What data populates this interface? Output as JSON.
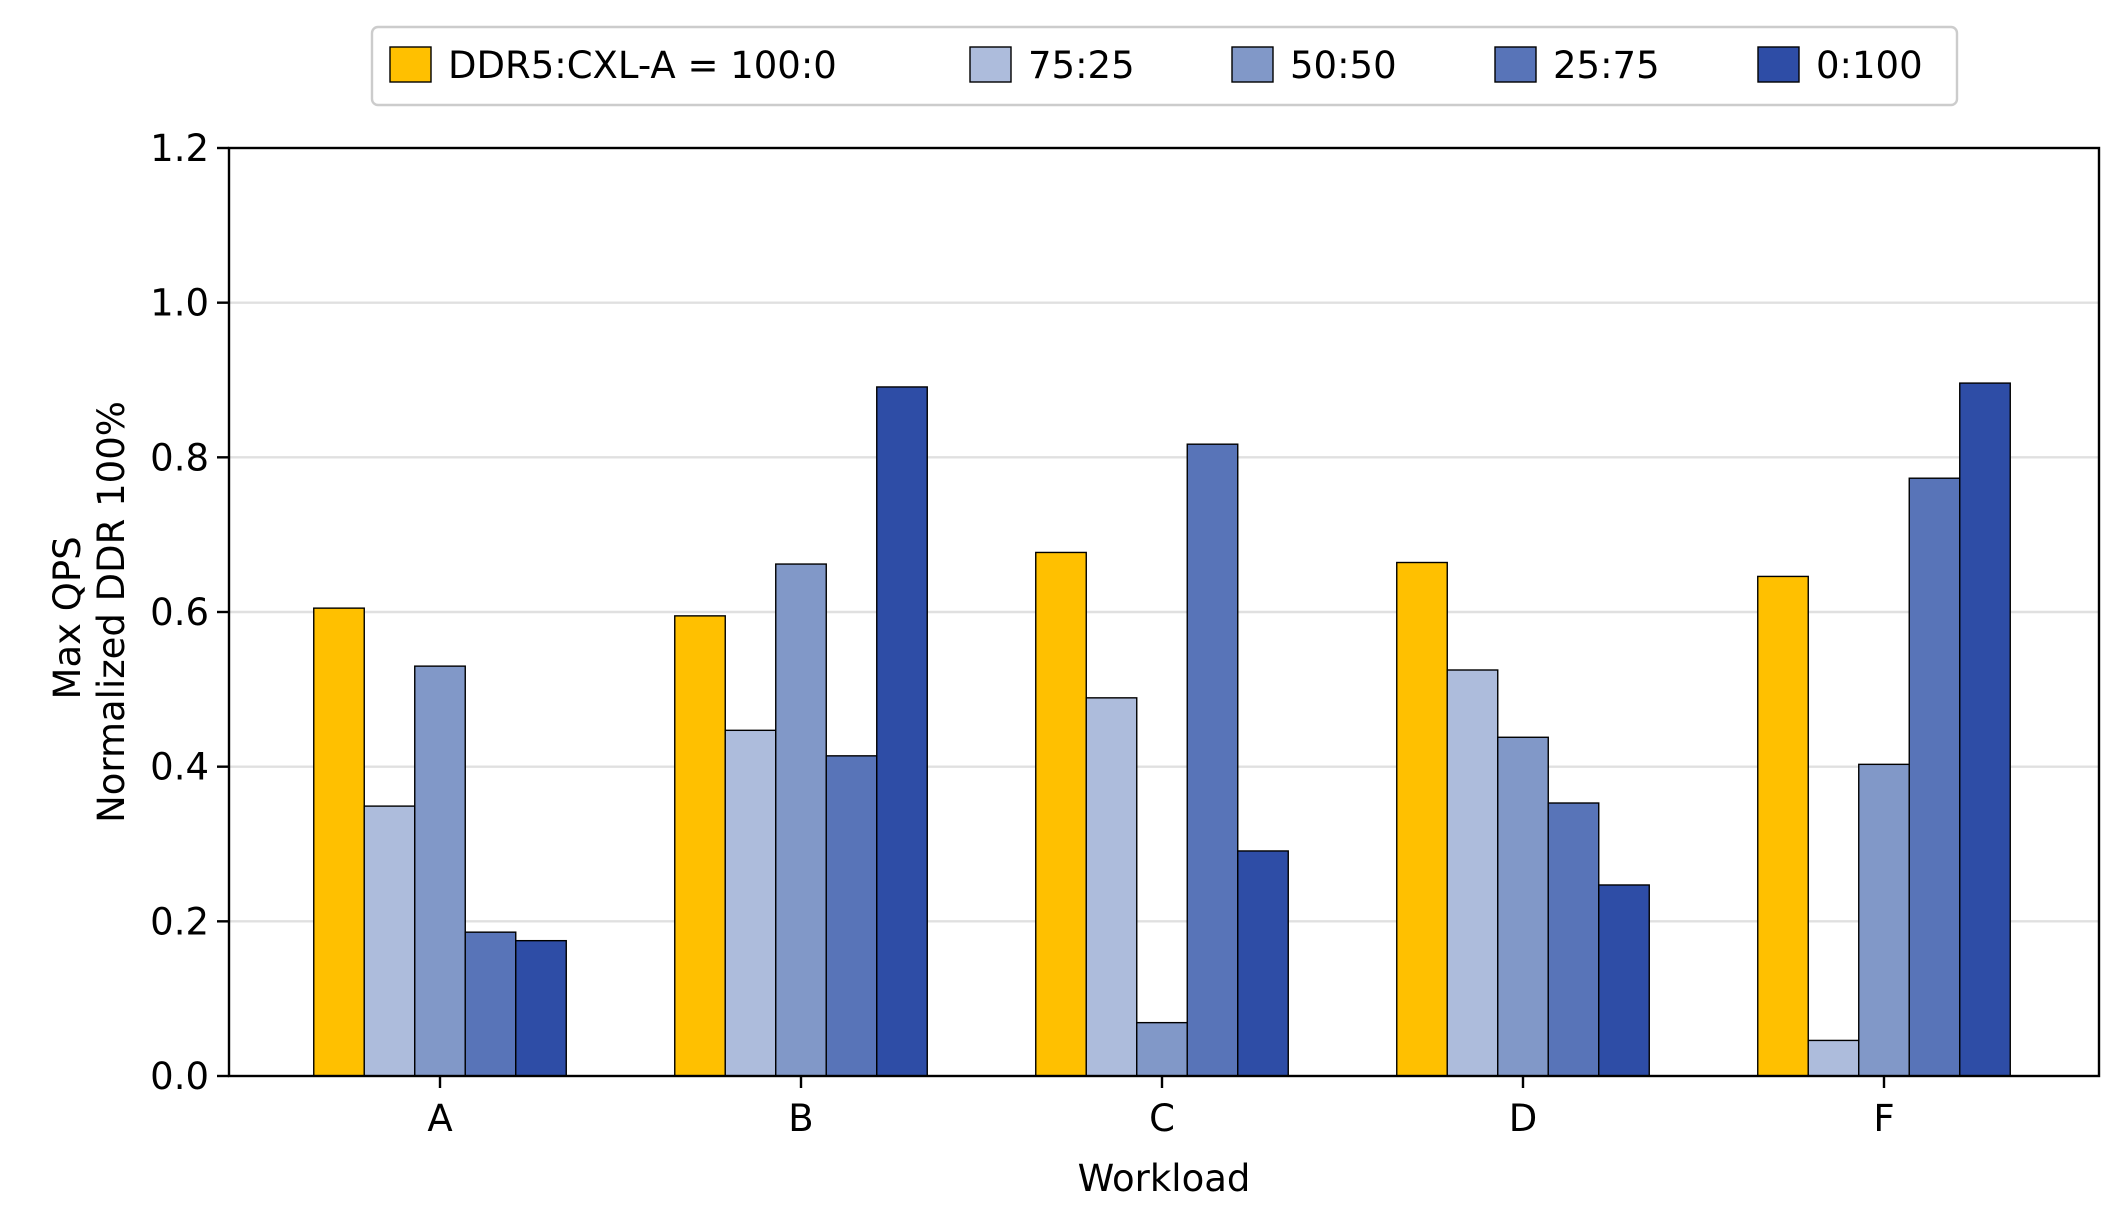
{
  "chart_data": {
    "type": "bar",
    "title": "",
    "xlabel": "Workload",
    "ylabel_lines": [
      "Max QPS",
      "Normalized DDR 100%"
    ],
    "categories": [
      "A",
      "B",
      "C",
      "D",
      "F"
    ],
    "ylim": [
      0,
      1.2
    ],
    "yticks": [
      "0.0",
      "0.2",
      "0.4",
      "0.6",
      "0.8",
      "1.0",
      "1.2"
    ],
    "grid": "horizontal",
    "legend_position": "top-center",
    "series": [
      {
        "name": "DDR5:CXL-A = 100:0",
        "color": "#FFC000",
        "values": [
          0.605,
          0.595,
          0.677,
          0.664,
          0.646
        ]
      },
      {
        "name": "75:25",
        "color": "#ADBCDC",
        "values": [
          0.349,
          0.447,
          0.489,
          0.525,
          0.046
        ]
      },
      {
        "name": "50:50",
        "color": "#8198C8",
        "values": [
          0.53,
          0.662,
          0.069,
          0.438,
          0.403
        ]
      },
      {
        "name": "25:75",
        "color": "#5874B8",
        "values": [
          0.186,
          0.414,
          0.817,
          0.353,
          0.773
        ]
      },
      {
        "name": "0:100",
        "color": "#2E4DA6",
        "values": [
          0.175,
          0.891,
          0.291,
          0.247,
          0.896
        ]
      }
    ]
  }
}
